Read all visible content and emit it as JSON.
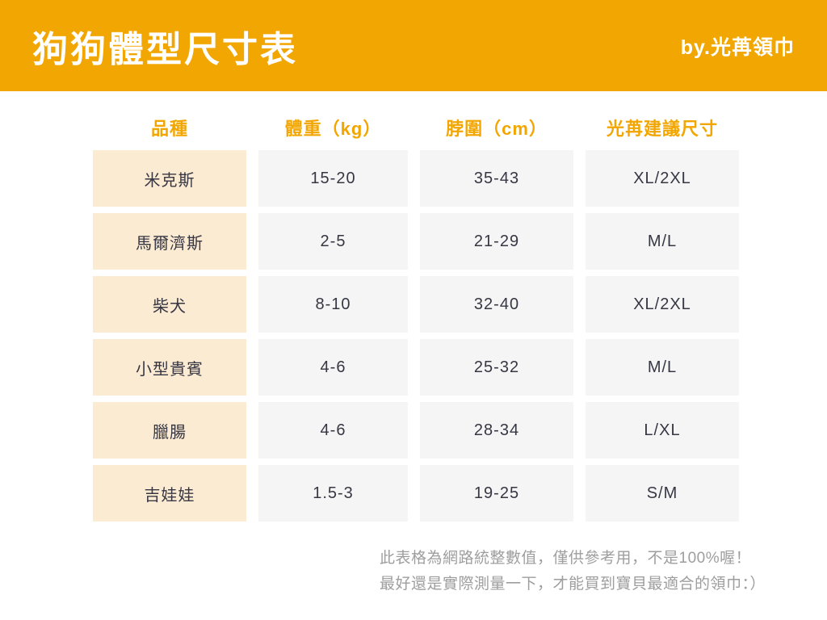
{
  "header": {
    "title": "狗狗體型尺寸表",
    "byline": "by.光苒領巾"
  },
  "chart_data": {
    "type": "table",
    "title": "狗狗體型尺寸表",
    "columns": [
      "品種",
      "體重（kg）",
      "脖圍（cm）",
      "光苒建議尺寸"
    ],
    "rows": [
      [
        "米克斯",
        "15-20",
        "35-43",
        "XL/2XL"
      ],
      [
        "馬爾濟斯",
        "2-5",
        "21-29",
        "M/L"
      ],
      [
        "柴犬",
        "8-10",
        "32-40",
        "XL/2XL"
      ],
      [
        "小型貴賓",
        "4-6",
        "25-32",
        "M/L"
      ],
      [
        "臘腸",
        "4-6",
        "28-34",
        "L/XL"
      ],
      [
        "吉娃娃",
        "1.5-3",
        "19-25",
        "S/M"
      ]
    ]
  },
  "footer": {
    "line1": "此表格為網路統整數值，僅供參考用，不是100%喔！",
    "line2": "最好還是實際測量一下，才能買到寶貝最適合的領巾：）"
  },
  "colors": {
    "accent_orange": "#F2A602",
    "breed_cell_bg": "#FCEBD3",
    "value_cell_bg": "#F5F5F6",
    "body_text": "#373743",
    "footer_text": "#9E9E9E",
    "header_text": "#FFFFFF"
  }
}
